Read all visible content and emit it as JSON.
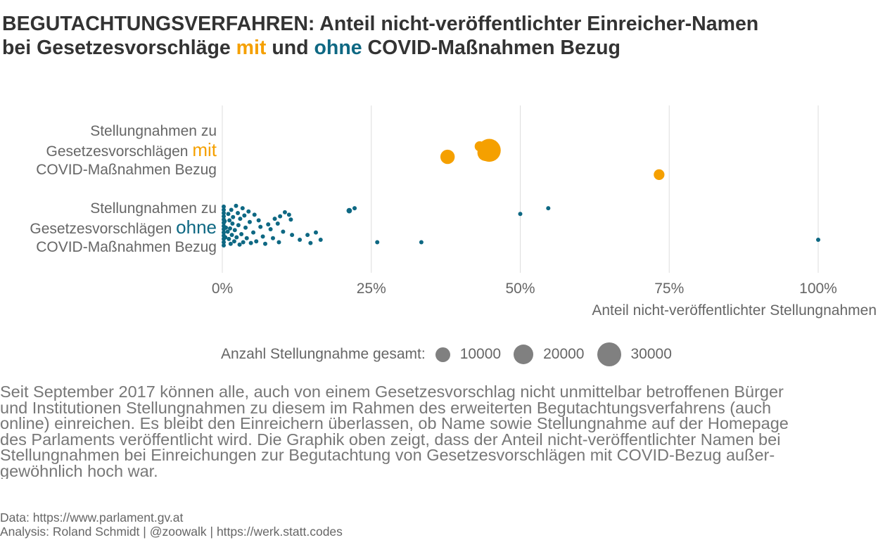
{
  "title": {
    "line1": "BEGUTACHTUNGSVERFAHREN: Anteil nicht-veröffentlichter Einreicher-Namen",
    "line2_pre": "bei Gesetzesvorschläge ",
    "line2_mit": "mit",
    "line2_mid": " und ",
    "line2_ohne": "ohne",
    "line2_post": " COVID-Maßnahmen Bezug"
  },
  "colors": {
    "mit": "#f5a000",
    "ohne": "#0e6883",
    "legend_dot": "#808080",
    "grid": "#dddddd"
  },
  "chart_data": {
    "type": "scatter",
    "xlabel": "Anteil nicht-veröffentlichter Stellungnahmen",
    "xlim": [
      0,
      1
    ],
    "xticks": [
      {
        "value": 0,
        "label": "0%"
      },
      {
        "value": 0.25,
        "label": "25%"
      },
      {
        "value": 0.5,
        "label": "50%"
      },
      {
        "value": 0.75,
        "label": "75%"
      },
      {
        "value": 1,
        "label": "100%"
      }
    ],
    "grid": true,
    "categories": [
      {
        "key": "mit",
        "label_pre": "Stellungnahmen zu",
        "label_mid": "Gesetzesvorschlägen ",
        "label_hl": "mit",
        "label_post": "COVID-Maßnahmen Bezug"
      },
      {
        "key": "ohne",
        "label_pre": "Stellungnahmen zu",
        "label_mid": "Gesetzesvorschlägen ",
        "label_hl": "ohne",
        "label_post": "COVID-Maßnahmen Bezug"
      }
    ],
    "series": [
      {
        "category": "mit",
        "points": [
          {
            "x": 0.378,
            "jitter": 0.35,
            "n": 9000
          },
          {
            "x": 0.432,
            "jitter": -0.3,
            "n": 4500
          },
          {
            "x": 0.448,
            "jitter": -0.05,
            "n": 23000
          },
          {
            "x": 0.442,
            "jitter": 0.1,
            "n": 12000
          },
          {
            "x": 0.733,
            "jitter": 1.45,
            "n": 5000
          }
        ]
      },
      {
        "category": "ohne",
        "points": [
          {
            "x": 0.222,
            "jitter": -0.95,
            "n": 800
          },
          {
            "x": 0.213,
            "jitter": -0.8,
            "n": 1300
          },
          {
            "x": 0.547,
            "jitter": -0.95,
            "n": 600
          },
          {
            "x": 0.5,
            "jitter": -0.6,
            "n": 250
          },
          {
            "x": 0.26,
            "jitter": 1.15,
            "n": 400
          },
          {
            "x": 0.334,
            "jitter": 1.15,
            "n": 200
          },
          {
            "x": 1.0,
            "jitter": 1.0,
            "n": 250
          },
          {
            "x": 0.165,
            "jitter": 1.0,
            "n": 600
          },
          {
            "x": 0.157,
            "jitter": 0.55,
            "n": 400
          },
          {
            "x": 0.143,
            "jitter": 0.7,
            "n": 300
          },
          {
            "x": 0.148,
            "jitter": 1.2,
            "n": 300
          },
          {
            "x": 0.13,
            "jitter": 1.0,
            "n": 250
          },
          {
            "x": 0.117,
            "jitter": 0.7,
            "n": 250
          },
          {
            "x": 0.115,
            "jitter": -0.25,
            "n": 300
          },
          {
            "x": 0.112,
            "jitter": -0.55,
            "n": 400
          },
          {
            "x": 0.105,
            "jitter": -0.7,
            "n": 300
          },
          {
            "x": 0.097,
            "jitter": -0.45,
            "n": 300
          },
          {
            "x": 0.093,
            "jitter": 0.0,
            "n": 250
          },
          {
            "x": 0.088,
            "jitter": -0.3,
            "n": 250
          },
          {
            "x": 0.102,
            "jitter": 0.5,
            "n": 350
          },
          {
            "x": 0.095,
            "jitter": 1.15,
            "n": 300
          },
          {
            "x": 0.085,
            "jitter": 0.9,
            "n": 250
          },
          {
            "x": 0.081,
            "jitter": 0.35,
            "n": 300
          },
          {
            "x": 0.077,
            "jitter": 0.05,
            "n": 250
          },
          {
            "x": 0.072,
            "jitter": 1.25,
            "n": 300
          },
          {
            "x": 0.068,
            "jitter": 0.8,
            "n": 300
          },
          {
            "x": 0.064,
            "jitter": 0.2,
            "n": 400
          },
          {
            "x": 0.061,
            "jitter": -0.2,
            "n": 300
          },
          {
            "x": 0.057,
            "jitter": 1.1,
            "n": 250
          },
          {
            "x": 0.054,
            "jitter": -0.55,
            "n": 250
          },
          {
            "x": 0.052,
            "jitter": 0.55,
            "n": 300
          },
          {
            "x": 0.048,
            "jitter": 1.2,
            "n": 300
          },
          {
            "x": 0.046,
            "jitter": -0.1,
            "n": 250
          },
          {
            "x": 0.044,
            "jitter": -0.75,
            "n": 250
          },
          {
            "x": 0.041,
            "jitter": 0.9,
            "n": 300
          },
          {
            "x": 0.039,
            "jitter": 0.25,
            "n": 400
          },
          {
            "x": 0.037,
            "jitter": -0.5,
            "n": 300
          },
          {
            "x": 0.035,
            "jitter": 1.15,
            "n": 250
          },
          {
            "x": 0.034,
            "jitter": -0.95,
            "n": 300
          },
          {
            "x": 0.032,
            "jitter": 0.65,
            "n": 300
          },
          {
            "x": 0.03,
            "jitter": -0.3,
            "n": 250
          },
          {
            "x": 0.029,
            "jitter": 1.3,
            "n": 300
          },
          {
            "x": 0.027,
            "jitter": 0.1,
            "n": 400
          },
          {
            "x": 0.026,
            "jitter": -0.65,
            "n": 300
          },
          {
            "x": 0.024,
            "jitter": 0.85,
            "n": 250
          },
          {
            "x": 0.023,
            "jitter": -1.1,
            "n": 250
          },
          {
            "x": 0.021,
            "jitter": 0.4,
            "n": 300
          },
          {
            "x": 0.02,
            "jitter": 1.1,
            "n": 300
          },
          {
            "x": 0.018,
            "jitter": -0.4,
            "n": 250
          },
          {
            "x": 0.017,
            "jitter": 0.0,
            "n": 300
          },
          {
            "x": 0.016,
            "jitter": 0.7,
            "n": 250
          },
          {
            "x": 0.015,
            "jitter": -0.85,
            "n": 300
          },
          {
            "x": 0.014,
            "jitter": 1.25,
            "n": 250
          },
          {
            "x": 0.013,
            "jitter": 0.3,
            "n": 300
          },
          {
            "x": 0.012,
            "jitter": -0.2,
            "n": 250
          },
          {
            "x": 0.011,
            "jitter": 0.95,
            "n": 300
          },
          {
            "x": 0.01,
            "jitter": -0.6,
            "n": 250
          },
          {
            "x": 0.009,
            "jitter": 0.5,
            "n": 250
          },
          {
            "x": 0.0,
            "jitter": -1.05,
            "n": 200
          },
          {
            "x": 0.0,
            "jitter": -0.85,
            "n": 200
          },
          {
            "x": 0.0,
            "jitter": -0.65,
            "n": 200
          },
          {
            "x": 0.0,
            "jitter": -0.45,
            "n": 200
          },
          {
            "x": 0.0,
            "jitter": -0.25,
            "n": 200
          },
          {
            "x": 0.0,
            "jitter": -0.05,
            "n": 200
          },
          {
            "x": 0.0,
            "jitter": 0.15,
            "n": 200
          },
          {
            "x": 0.0,
            "jitter": 0.35,
            "n": 200
          },
          {
            "x": 0.0,
            "jitter": 0.55,
            "n": 200
          },
          {
            "x": 0.0,
            "jitter": 0.75,
            "n": 200
          },
          {
            "x": 0.0,
            "jitter": 0.95,
            "n": 200
          },
          {
            "x": 0.0,
            "jitter": 1.15,
            "n": 200
          },
          {
            "x": 0.0,
            "jitter": 1.35,
            "n": 200
          },
          {
            "x": 0.004,
            "jitter": -0.15,
            "n": 250
          },
          {
            "x": 0.005,
            "jitter": 0.85,
            "n": 250
          },
          {
            "x": 0.006,
            "jitter": 0.25,
            "n": 250
          }
        ]
      }
    ],
    "size_legend": {
      "title": "Anzahl Stellungnahme gesamt:",
      "breaks": [
        {
          "n": 10000,
          "label": "10000"
        },
        {
          "n": 20000,
          "label": "20000"
        },
        {
          "n": 30000,
          "label": "30000"
        }
      ]
    }
  },
  "caption": {
    "lines": [
      "Seit September 2017 können alle, auch von einem Gesetzesvorschlag nicht unmittelbar betroffenen Bürger",
      "und Institutionen Stellungnahmen zu diesem im Rahmen des erweiterten Begutachtungsverfahrens (auch",
      "online) einreichen. Es bleibt den Einreichern überlassen, ob Name sowie Stellungnahme auf der Homepage",
      "des Parlaments veröffentlicht wird. Die Graphik oben zeigt, dass der Anteil nicht-veröffentlichter Namen bei",
      "Stellungnahmen bei Einreichungen zur Begutachtung von Gesetzesvorschlägen mit COVID-Bezug außer-",
      "gewöhnlich hoch war."
    ]
  },
  "source": {
    "data": "Data: https://www.parlament.gv.at",
    "analysis": "Analysis: Roland Schmidt | @zoowalk | https://werk.statt.codes"
  }
}
